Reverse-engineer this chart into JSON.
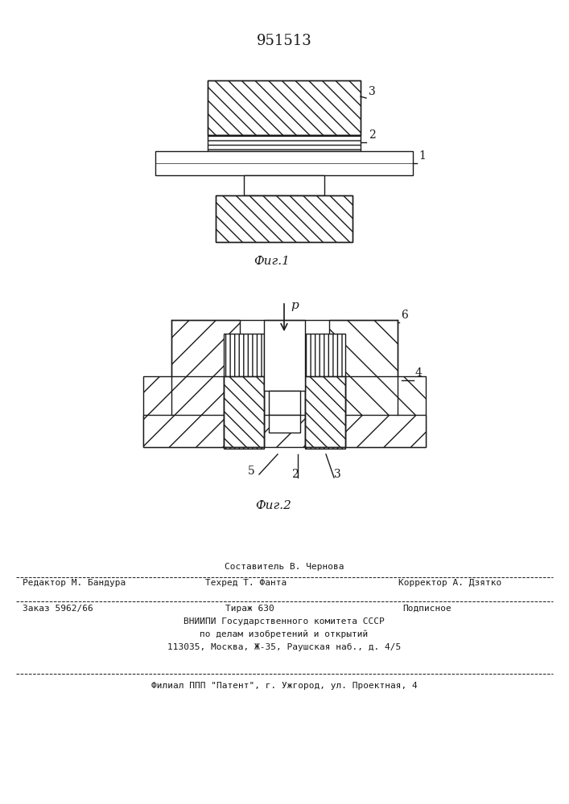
{
  "title_number": "951513",
  "fig1_caption": "Фиг.1",
  "fig2_caption": "Фиг.2",
  "fig2_pressure_label": "p",
  "footer_line1": "Составитель В. Чернова",
  "footer_line2_left": "Редактор М. Бандура",
  "footer_line2_mid": "Техред Т. Фанта",
  "footer_line2_right": "Корректор А. Дзятко",
  "footer_line3_left": "Заказ 5962/66",
  "footer_line3_mid": "Тираж 630",
  "footer_line3_right": "Подписное",
  "footer_line4": "ВНИИПИ Государственного комитета СССР",
  "footer_line5": "по делам изобретений и открытий",
  "footer_line6": "113035, Москва, Ж-35, Раушская наб., д. 4/5",
  "footer_line7": "Филиал ППП \"Патент\", г. Ужгород, ул. Проектная, 4",
  "line_color": "#1a1a1a"
}
